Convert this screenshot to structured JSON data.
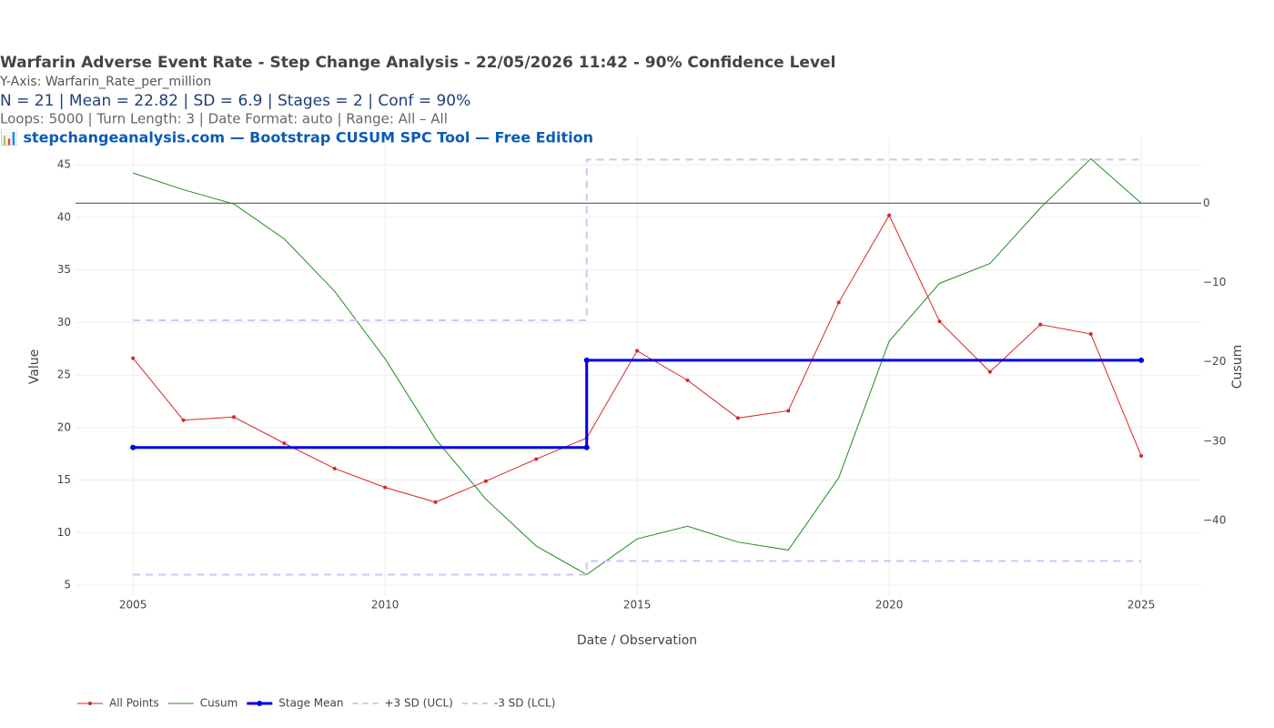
{
  "chart_data": {
    "type": "line",
    "title": "Warfarin Adverse Event Rate - Step Change Analysis - 22/05/2026 11:42 - 90% Confidence Level",
    "subtitle": "Y-Axis: Warfarin_Rate_per_million",
    "stats": "N = 21  |  Mean = 22.82  |  SD = 6.9  |  Stages = 2  |  Conf = 90%",
    "settings_text": "Loops: 5000  |  Turn Length: 3  |  Date Format: auto  |  Range: All – All",
    "source": "📊 stepchangeanalysis.com — Bootstrap CUSUM SPC Tool — Free Edition",
    "x_label": "Date / Observation",
    "y_label": "Value",
    "y2_label": "Cusum",
    "xlim": [
      2003.86,
      2026.19
    ],
    "xticks": [
      2005,
      2010,
      2015,
      2020,
      2025
    ],
    "ylim": [
      3.96,
      47.7
    ],
    "yticks": [
      5,
      10,
      15,
      20,
      25,
      30,
      35,
      40,
      45
    ],
    "y2lim": [
      -49.5,
      8.4
    ],
    "y2ticks": [
      {
        "value": -40,
        "label": "−40"
      },
      {
        "value": -30,
        "label": "−30"
      },
      {
        "value": -20,
        "label": "−20"
      },
      {
        "value": -10,
        "label": "−10"
      },
      0
    ],
    "y2_zeroline": true,
    "grid": true,
    "legend": "bottom",
    "series": [
      {
        "name": "All Points",
        "color": "#d62728",
        "line": "thin",
        "markers": true,
        "x": [
          2005,
          2006,
          2007,
          2008,
          2009,
          2010,
          2011,
          2012,
          2013,
          2014,
          2015,
          2016,
          2017,
          2018,
          2019,
          2020,
          2021,
          2022,
          2023,
          2024,
          2025
        ],
        "values": [
          26.6,
          20.7,
          21.0,
          18.5,
          16.1,
          14.3,
          12.9,
          14.9,
          17.0,
          19.0,
          27.3,
          24.5,
          20.9,
          21.6,
          31.9,
          40.2,
          30.1,
          25.3,
          29.8,
          28.9,
          17.3
        ]
      },
      {
        "name": "Cusum",
        "color": "#228b22",
        "line": "thin",
        "markers": false,
        "axis": "y2",
        "x": [
          2005,
          2006,
          2007,
          2008,
          2009,
          2010,
          2011,
          2012,
          2013,
          2014,
          2015,
          2016,
          2017,
          2018,
          2019,
          2020,
          2021,
          2022,
          2023,
          2024,
          2025
        ],
        "values": [
          3.8,
          1.7,
          -0.1,
          -4.5,
          -11.1,
          -19.6,
          -29.7,
          -37.3,
          -43.2,
          -46.8,
          -42.3,
          -40.7,
          -42.7,
          -43.7,
          -34.6,
          -17.4,
          -10.1,
          -7.6,
          -0.6,
          5.6,
          0
        ]
      },
      {
        "name": "Stage Mean",
        "color": "#0000e0",
        "line": "thick",
        "markers": true,
        "x": [
          2005,
          2014,
          2014,
          2025
        ],
        "values": [
          18.1,
          18.1,
          26.4,
          26.4
        ]
      },
      {
        "name": "+3 SD (UCL)",
        "color": "#c8c8f5",
        "line": "dash",
        "markers": false,
        "x": [
          2005,
          2014,
          2014,
          2025
        ],
        "values": [
          30.2,
          30.2,
          45.5,
          45.5
        ]
      },
      {
        "name": "-3 SD (LCL)",
        "color": "#c8c8f5",
        "line": "dash",
        "markers": false,
        "x": [
          2005,
          2014,
          2014,
          2025
        ],
        "values": [
          6.0,
          6.0,
          7.3,
          7.3
        ]
      }
    ]
  }
}
